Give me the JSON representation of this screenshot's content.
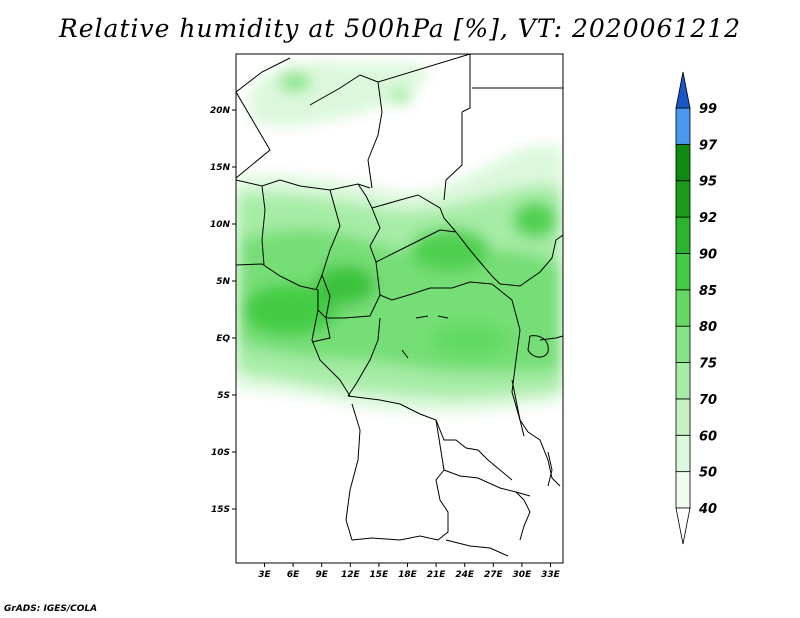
{
  "title": "Relative humidity at 500hPa [%], VT: 2020061212",
  "credit": "GrADS: IGES/COLA",
  "map": {
    "lat_labels": [
      "20N",
      "15N",
      "10N",
      "5N",
      "EQ",
      "5S",
      "10S",
      "15S"
    ],
    "lon_labels": [
      "3E",
      "6E",
      "9E",
      "12E",
      "15E",
      "18E",
      "21E",
      "24E",
      "27E",
      "30E",
      "33E"
    ]
  },
  "colorbar": {
    "levels": [
      {
        "label": "40",
        "color": "#f0fcf0"
      },
      {
        "label": "50",
        "color": "#dcf8dc"
      },
      {
        "label": "60",
        "color": "#c4f2c4"
      },
      {
        "label": "70",
        "color": "#a6eca6"
      },
      {
        "label": "75",
        "color": "#86e486"
      },
      {
        "label": "80",
        "color": "#64da64"
      },
      {
        "label": "85",
        "color": "#44cc44"
      },
      {
        "label": "90",
        "color": "#2cb42c"
      },
      {
        "label": "92",
        "color": "#1a9c1a"
      },
      {
        "label": "95",
        "color": "#0e8a0e"
      },
      {
        "label": "97",
        "color": "#4a98ee"
      },
      {
        "label": "99",
        "color": "#2a74e0"
      }
    ],
    "top_arrow_color": "#1a56c8",
    "bottom_arrow_color": "#ffffff"
  }
}
